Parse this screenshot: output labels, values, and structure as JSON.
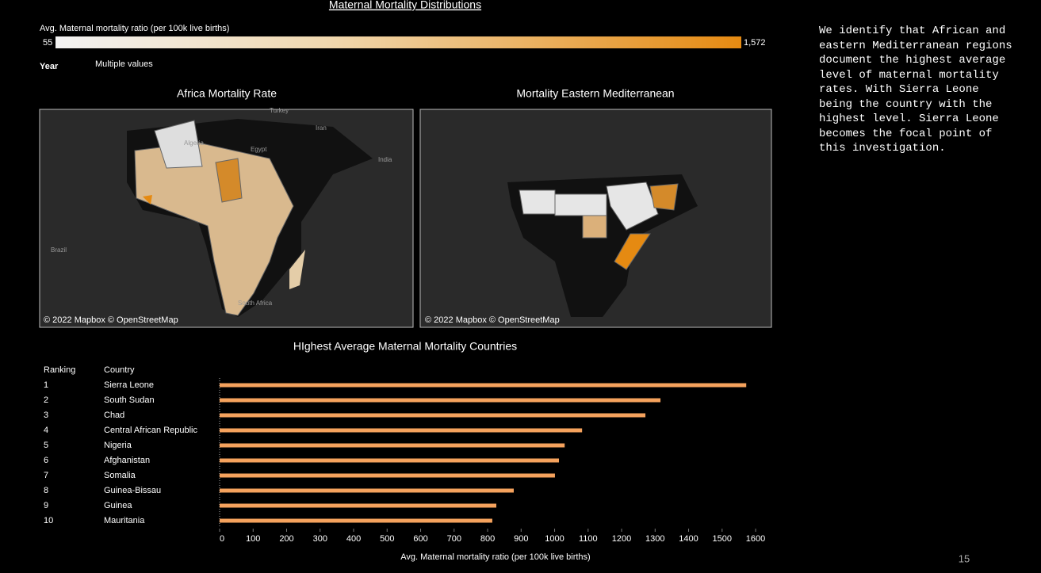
{
  "title": "Maternal Mortality Distributions",
  "legend": {
    "label": "Avg. Maternal mortality ratio (per 100k live births)",
    "min": 55,
    "max": {
      "value": 1572,
      "label": "1,572"
    }
  },
  "filter": {
    "label": "Year",
    "value": "Multiple values"
  },
  "maps": [
    {
      "title": "Africa Mortality Rate",
      "credit": "© 2022 Mapbox © OpenStreetMap",
      "places": [
        "Turkey",
        "Iran",
        "Algeria",
        "Egypt",
        "India",
        "Brazil",
        "South Africa"
      ]
    },
    {
      "title": "Mortality Eastern Mediterranean",
      "credit": "© 2022 Mapbox © OpenStreetMap",
      "places": []
    }
  ],
  "chart_data": {
    "type": "hbar",
    "title": "HIghest Average Maternal Mortality Countries",
    "columns": [
      "Ranking",
      "Country"
    ],
    "rankings": [
      1,
      2,
      3,
      4,
      5,
      6,
      7,
      8,
      9,
      10
    ],
    "categories": [
      "Sierra Leone",
      "South Sudan",
      "Chad",
      "Central African Republic",
      "Nigeria",
      "Afghanistan",
      "Somalia",
      "Guinea-Bissau",
      "Guinea",
      "Mauritania"
    ],
    "values": [
      1572,
      1316,
      1271,
      1082,
      1030,
      1013,
      1001,
      878,
      826,
      814
    ],
    "color": "#f5a25d",
    "xlim": [
      0,
      1620
    ],
    "xticks": [
      0,
      100,
      200,
      300,
      400,
      500,
      600,
      700,
      800,
      900,
      1000,
      1100,
      1200,
      1300,
      1400,
      1500,
      1600
    ],
    "xlabel": "Avg. Maternal mortality ratio (per 100k live births)"
  },
  "note": "We identify that African and eastern Mediterranean regions document the highest average level of maternal mortality rates. With Sierra Leone being the country with the highest level. Sierra Leone becomes the focal point of this investigation.",
  "page_number": 15
}
